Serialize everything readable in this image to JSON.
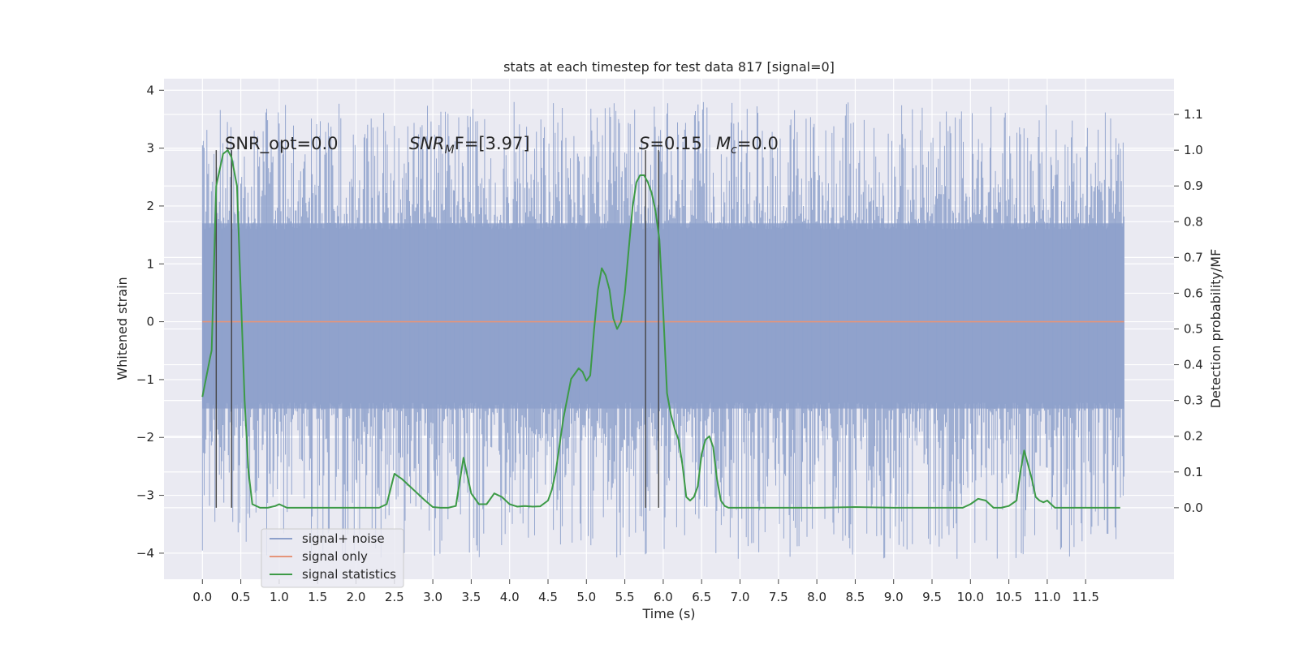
{
  "chart_data": {
    "type": "line",
    "title": "stats at each timestep for test data 817 [signal=0]",
    "xlabel": "Time (s)",
    "ylabel_left": "Whitened strain",
    "ylabel_right": "Detection probability/MF",
    "xlim": [
      -0.5,
      12.65
    ],
    "ylim_left": [
      -4.45,
      4.2
    ],
    "ylim_right": [
      -0.2,
      1.2
    ],
    "x_ticks": [
      "0.0",
      "0.5",
      "1.0",
      "1.5",
      "2.0",
      "2.5",
      "3.0",
      "3.5",
      "4.0",
      "4.5",
      "5.0",
      "5.5",
      "6.0",
      "6.5",
      "7.0",
      "7.5",
      "8.0",
      "8.5",
      "9.0",
      "9.5",
      "10.0",
      "10.5",
      "11.0",
      "11.5"
    ],
    "y_left_ticks": [
      "4",
      "3",
      "2",
      "1",
      "0",
      "−1",
      "−2",
      "−3",
      "−4"
    ],
    "y_right_ticks": [
      "1.1",
      "1.0",
      "0.9",
      "0.8",
      "0.7",
      "0.6",
      "0.5",
      "0.4",
      "0.3",
      "0.2",
      "0.1",
      "0.0"
    ],
    "grid": true,
    "legend_position": "lower-left",
    "annotations": {
      "snr_opt": "SNR_opt=0.0",
      "snr_mf_a": "SNR",
      "snr_mf_sub": "M",
      "snr_mf_b": "F=[3.97]",
      "s_sym": "S",
      "s_val": "=0.15",
      "mc_sym": "M",
      "mc_sub": "c",
      "mc_val": "=0.0"
    },
    "series": [
      {
        "name": "signal+ noise",
        "axis": "left",
        "color": "#8da0cb",
        "x_range": [
          0.0,
          12.0
        ],
        "band_low": -1.5,
        "band_high": 1.7,
        "spike_max": 3.8,
        "spike_min": -4.1
      },
      {
        "name": "signal only",
        "axis": "left",
        "color": "#e5957a",
        "x": [
          0.0,
          12.0
        ],
        "y": [
          0.0,
          0.0
        ]
      },
      {
        "name": "signal statistics",
        "axis": "right",
        "color": "#3c9a46",
        "x": [
          0.0,
          0.1,
          0.12,
          0.18,
          0.27,
          0.33,
          0.38,
          0.45,
          0.5,
          0.55,
          0.6,
          0.65,
          0.75,
          0.85,
          0.95,
          1.0,
          1.1,
          1.5,
          2.0,
          2.3,
          2.4,
          2.5,
          2.6,
          2.7,
          2.8,
          2.9,
          3.0,
          3.1,
          3.2,
          3.3,
          3.4,
          3.5,
          3.6,
          3.7,
          3.8,
          3.9,
          4.0,
          4.1,
          4.2,
          4.3,
          4.4,
          4.5,
          4.55,
          4.6,
          4.7,
          4.8,
          4.9,
          4.95,
          5.0,
          5.05,
          5.1,
          5.15,
          5.2,
          5.25,
          5.3,
          5.35,
          5.4,
          5.45,
          5.5,
          5.55,
          5.6,
          5.65,
          5.7,
          5.75,
          5.8,
          5.85,
          5.9,
          5.95,
          6.0,
          6.05,
          6.1,
          6.15,
          6.2,
          6.25,
          6.3,
          6.35,
          6.4,
          6.45,
          6.5,
          6.55,
          6.6,
          6.65,
          6.7,
          6.75,
          6.8,
          6.85,
          6.9,
          6.95,
          7.0,
          7.05,
          7.1,
          7.15,
          7.2,
          7.3,
          7.5,
          8.0,
          8.5,
          9.0,
          9.5,
          9.7,
          9.8,
          9.9,
          10.0,
          10.1,
          10.2,
          10.3,
          10.4,
          10.5,
          10.6,
          10.65,
          10.7,
          10.75,
          10.8,
          10.85,
          10.9,
          10.95,
          11.0,
          11.05,
          11.1,
          11.2,
          11.3,
          11.5,
          11.8,
          11.95
        ],
        "y": [
          0.31,
          0.42,
          0.44,
          0.9,
          0.99,
          1.0,
          0.98,
          0.9,
          0.6,
          0.3,
          0.1,
          0.01,
          0.0,
          0.0,
          0.005,
          0.01,
          0.0,
          0.0,
          0.0,
          0.0,
          0.01,
          0.095,
          0.08,
          0.06,
          0.04,
          0.02,
          0.002,
          0.0,
          0.0,
          0.005,
          0.14,
          0.04,
          0.01,
          0.01,
          0.04,
          0.03,
          0.01,
          0.003,
          0.005,
          0.003,
          0.004,
          0.02,
          0.05,
          0.1,
          0.25,
          0.36,
          0.39,
          0.38,
          0.355,
          0.37,
          0.5,
          0.61,
          0.67,
          0.65,
          0.61,
          0.53,
          0.5,
          0.52,
          0.6,
          0.72,
          0.84,
          0.91,
          0.93,
          0.93,
          0.91,
          0.88,
          0.83,
          0.75,
          0.55,
          0.32,
          0.26,
          0.22,
          0.19,
          0.12,
          0.03,
          0.02,
          0.03,
          0.06,
          0.15,
          0.19,
          0.2,
          0.17,
          0.08,
          0.02,
          0.005,
          0.0,
          0.0,
          0.0,
          0.0,
          0.0,
          0.0,
          0.0,
          0.0,
          0.0,
          0.0,
          0.0,
          0.002,
          0.0,
          0.0,
          0.0,
          0.0,
          0.0,
          0.01,
          0.025,
          0.02,
          0.0,
          0.0,
          0.005,
          0.02,
          0.1,
          0.16,
          0.12,
          0.08,
          0.03,
          0.02,
          0.015,
          0.02,
          0.01,
          0.0,
          0.0,
          0.0,
          0.0,
          0.0,
          0.0
        ]
      }
    ],
    "vertical_markers": [
      0.18,
      0.38,
      5.77,
      5.94
    ],
    "marker_color": "#444444"
  }
}
